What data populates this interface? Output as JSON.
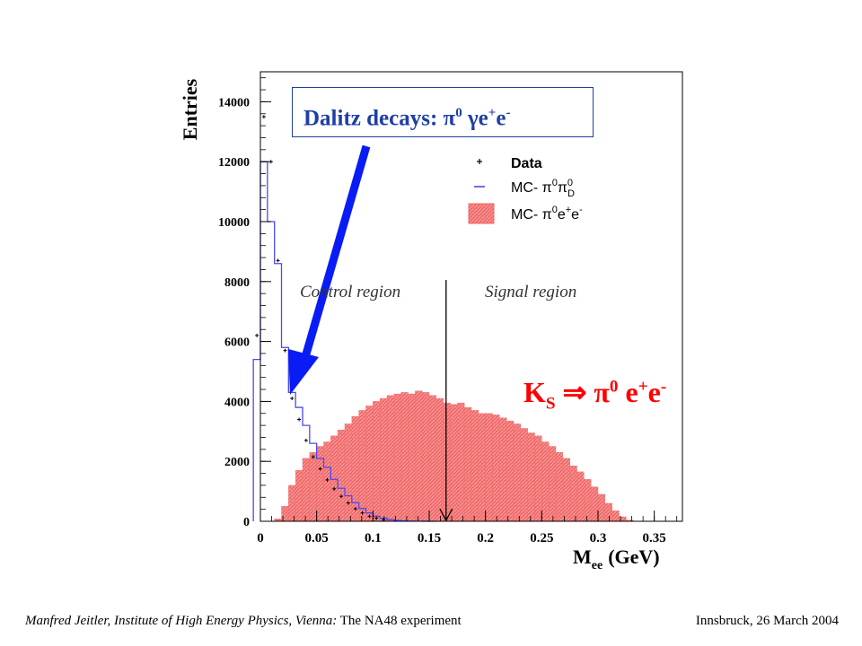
{
  "chart_data": {
    "type": "bar",
    "ylabel": "Entries",
    "xlabel_main": "M",
    "xlabel_sub": "ee",
    "xlabel_unit": "(GeV)",
    "xlim": [
      0,
      0.375
    ],
    "ylim": [
      0,
      15000
    ],
    "xticks": [
      "0",
      "0.05",
      "0.1",
      "0.15",
      "0.2",
      "0.25",
      "0.3",
      "0.35"
    ],
    "yticks": [
      "0",
      "2000",
      "4000",
      "6000",
      "8000",
      "10000",
      "12000",
      "14000"
    ],
    "xtick_values": [
      0,
      0.05,
      0.1,
      0.15,
      0.2,
      0.25,
      0.3,
      0.35
    ],
    "ytick_values": [
      0,
      2000,
      4000,
      6000,
      8000,
      10000,
      12000,
      14000
    ],
    "bin_width": 0.00625,
    "legend": {
      "placement": "top-right",
      "entries": [
        {
          "marker": "+",
          "label": "Data"
        },
        {
          "marker": "–",
          "label": "MC- π⁰π⁰_D"
        },
        {
          "marker": "box",
          "label": "MC- π⁰e⁺e⁻"
        }
      ]
    },
    "legend_labels": {
      "data": "Data",
      "mc": "MC-"
    },
    "series": [
      {
        "name": "MC- π⁰e⁺e⁻",
        "kind": "filled-histogram",
        "color": "#f06060",
        "bin_edges_start": 0,
        "values": [
          0,
          0,
          80,
          500,
          1200,
          1700,
          2100,
          2300,
          2500,
          2650,
          2850,
          3050,
          3250,
          3500,
          3700,
          3850,
          4000,
          4100,
          4200,
          4250,
          4300,
          4250,
          4350,
          4300,
          4200,
          4100,
          3950,
          3900,
          3950,
          3800,
          3700,
          3600,
          3600,
          3550,
          3450,
          3350,
          3250,
          3100,
          2950,
          2850,
          2650,
          2500,
          2300,
          2100,
          1850,
          1650,
          1400,
          1150,
          900,
          600,
          350,
          150,
          40,
          0,
          0,
          0
        ]
      },
      {
        "name": "MC- π⁰π⁰_D",
        "kind": "step-line",
        "color": "#4a4af0",
        "bin_edges_start": -0.00625,
        "values": [
          5400,
          12000,
          10000,
          8600,
          5800,
          4300,
          3800,
          3200,
          2600,
          2100,
          1800,
          1400,
          1100,
          850,
          620,
          430,
          280,
          170,
          100,
          55,
          30,
          15,
          8,
          4,
          2,
          0
        ]
      },
      {
        "name": "Data",
        "kind": "points",
        "color": "#000000",
        "x": [
          -0.0031,
          0.0031,
          0.0094,
          0.0156,
          0.0219,
          0.0281,
          0.0344,
          0.0406,
          0.0469,
          0.0531,
          0.0594,
          0.0656,
          0.0719,
          0.0781,
          0.0844,
          0.0906,
          0.0969,
          0.1031,
          0.1094
        ],
        "values": [
          6200,
          13500,
          12000,
          8700,
          5700,
          4100,
          3400,
          2700,
          2150,
          1750,
          1380,
          1080,
          830,
          610,
          420,
          280,
          170,
          100,
          55
        ]
      }
    ],
    "annotations": {
      "cut_value": 0.165,
      "control_region": "Control region",
      "signal_region": "Signal region"
    }
  },
  "dalitz_label": {
    "text": "Dalitz decays: ",
    "symbols": "π",
    "sup0": "0",
    "gamma": " γe",
    "plus": "+",
    "e": "e",
    "minus": "-"
  },
  "ks_label": {
    "k": "K",
    "s": "S",
    "arrow": " ⇒ ",
    "pi": "π",
    "sup0": "0",
    "e1": " e",
    "plus": "+",
    "e2": "e",
    "minus": "-"
  },
  "footer": {
    "left_italic": "Manfred Jeitler,   Institute of High Energy Physics, Vienna:",
    "left_plain": " The NA48 experiment",
    "right": "Innsbruck, 26 March 2004"
  }
}
